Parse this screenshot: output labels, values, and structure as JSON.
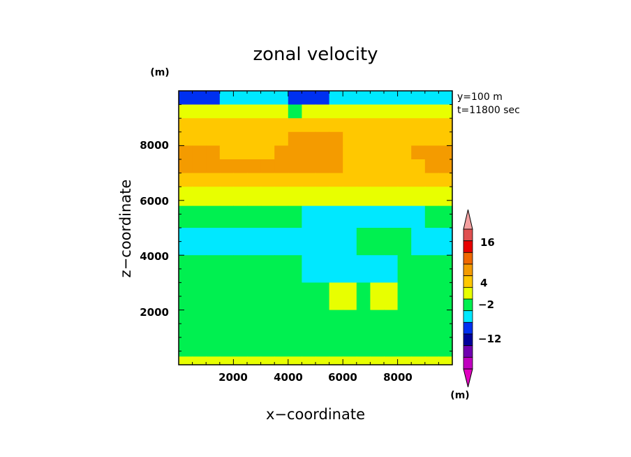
{
  "chart_data": {
    "type": "heatmap",
    "title": "zonal velocity",
    "xlabel": "x−coordinate",
    "ylabel": "z−coordinate",
    "x_unit": "(m)",
    "y_unit": "(m)",
    "xlim": [
      0,
      10000
    ],
    "ylim": [
      0,
      10000
    ],
    "x_ticks": [
      "2000",
      "4000",
      "6000",
      "8000"
    ],
    "y_ticks": [
      "2000",
      "4000",
      "6000",
      "8000"
    ],
    "annotations": [
      "y=100  m",
      "t=11800 sec"
    ],
    "colorbar": {
      "labels": [
        "16",
        "4",
        "−2",
        "−12"
      ],
      "colors": [
        "#e05050",
        "#e80000",
        "#f06800",
        "#f49b00",
        "#ffc800",
        "#e8ff00",
        "#00f050",
        "#00e8ff",
        "#0030f0",
        "#00009b",
        "#7000b0",
        "#c000c0"
      ],
      "over_color": "#f4a0a0",
      "under_color": "#e000c0"
    },
    "field": {
      "x_start": 0,
      "x_step": 500,
      "z_values": [
        300,
        1000,
        2000,
        3000,
        4000,
        5000,
        5800,
        6500,
        7000,
        7500,
        8000,
        8500,
        9000,
        9500
      ],
      "rows_top_to_bottom": [
        [
          -4,
          -4,
          -4,
          -2,
          -2,
          -2,
          -2,
          -2,
          -4,
          -4,
          -4,
          -2,
          -2,
          -2,
          -2,
          -2,
          -2,
          -2,
          -2,
          -2
        ],
        [
          1,
          1,
          1,
          1,
          1,
          1,
          1,
          1,
          -1,
          1,
          1,
          1,
          1,
          1,
          1,
          1,
          1,
          1,
          1,
          1
        ],
        [
          3,
          3,
          3,
          3,
          3,
          3,
          3,
          3,
          3,
          3,
          3,
          3,
          3,
          3,
          3,
          3,
          3,
          3,
          3,
          3
        ],
        [
          3,
          3,
          3,
          3,
          3,
          3,
          3,
          3,
          6,
          6,
          6,
          6,
          3,
          3,
          3,
          3,
          3,
          3,
          3,
          3
        ],
        [
          6,
          6,
          6,
          3,
          3,
          3,
          3,
          6,
          6,
          6,
          6,
          6,
          3,
          3,
          3,
          3,
          3,
          6,
          6,
          6
        ],
        [
          6,
          6,
          6,
          6,
          6,
          6,
          6,
          6,
          6,
          6,
          6,
          6,
          3,
          3,
          3,
          3,
          3,
          3,
          6,
          6
        ],
        [
          3,
          3,
          3,
          3,
          3,
          3,
          3,
          3,
          3,
          3,
          3,
          3,
          3,
          3,
          3,
          3,
          3,
          3,
          3,
          3
        ],
        [
          1,
          1,
          1,
          1,
          1,
          1,
          1,
          1,
          1,
          1,
          1,
          1,
          1,
          1,
          1,
          1,
          1,
          1,
          1,
          1
        ],
        [
          -1,
          -1,
          -1,
          -1,
          -1,
          -1,
          -1,
          -1,
          -1,
          -3,
          -3,
          -3,
          -3,
          -3,
          -3,
          -3,
          -3,
          -3,
          -1,
          -1
        ],
        [
          -3,
          -3,
          -3,
          -3,
          -3,
          -3,
          -3,
          -3,
          -3,
          -3,
          -3,
          -3,
          -3,
          -1,
          -1,
          -1,
          -1,
          -3,
          -3,
          -3
        ],
        [
          -1,
          -1,
          -1,
          -1,
          -1,
          -1,
          -1,
          -1,
          -1,
          -3,
          -3,
          -3,
          -3,
          -3,
          -3,
          -3,
          -1,
          -1,
          -1,
          -1
        ],
        [
          -1,
          -1,
          -1,
          -1,
          -1,
          -1,
          -1,
          -1,
          -1,
          -1,
          -1,
          1,
          1,
          -1,
          1,
          1,
          -1,
          -1,
          -1,
          -1
        ],
        [
          -1,
          -1,
          -1,
          -1,
          -1,
          -1,
          -1,
          -1,
          -1,
          -1,
          -1,
          -1,
          -1,
          -1,
          -1,
          -1,
          -1,
          -1,
          -1,
          -1
        ],
        [
          -1,
          -1,
          -1,
          -1,
          -1,
          -1,
          -1,
          -1,
          -1,
          -1,
          -1,
          -1,
          -1,
          -1,
          -1,
          -1,
          -1,
          -1,
          -1,
          -1
        ],
        [
          1,
          1,
          1,
          1,
          1,
          1,
          1,
          1,
          1,
          1,
          1,
          1,
          1,
          1,
          1,
          1,
          1,
          1,
          1,
          1
        ]
      ]
    }
  }
}
